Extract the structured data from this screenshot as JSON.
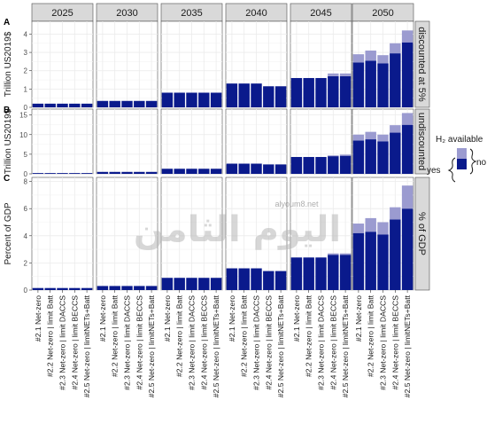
{
  "chart_data": {
    "type": "bar",
    "stacked": true,
    "facet_columns": [
      "2025",
      "2030",
      "2035",
      "2040",
      "2045",
      "2050"
    ],
    "categories": [
      "#2.1 Net-zero",
      "#2.2 Net-zero | limit Batt",
      "#2.3 Net-zero | limit DACCS",
      "#2.4 Net-zero | limit BECCS",
      "#2.5 Net-zero | limitNETs+Batt"
    ],
    "legend": {
      "title": "H₂ available",
      "entries": [
        {
          "label": "no",
          "color": "#9b9bd0"
        },
        {
          "label": "yes",
          "color": "#0a1a8c"
        }
      ]
    },
    "colors": {
      "base": "#0a1a8c",
      "extra": "#9b9bd0",
      "strip": "#d9d9d9",
      "grid": "#ebebeb"
    },
    "panels": [
      {
        "tag": "A",
        "strip": "discounted at 5%",
        "ylabel": "Trillion US2019$",
        "ylim": [
          0,
          4.7
        ],
        "yticks": [
          0,
          1,
          2,
          3,
          4
        ],
        "base": [
          [
            0.2,
            0.2,
            0.2,
            0.2,
            0.2
          ],
          [
            0.35,
            0.35,
            0.35,
            0.35,
            0.35
          ],
          [
            0.8,
            0.8,
            0.8,
            0.8,
            0.8
          ],
          [
            1.3,
            1.3,
            1.3,
            1.15,
            1.15
          ],
          [
            1.6,
            1.6,
            1.6,
            1.7,
            1.7
          ],
          [
            2.45,
            2.55,
            2.4,
            2.95,
            3.55
          ]
        ],
        "extra": [
          [
            0,
            0,
            0,
            0,
            0
          ],
          [
            0,
            0,
            0,
            0,
            0
          ],
          [
            0,
            0,
            0,
            0,
            0
          ],
          [
            0,
            0,
            0,
            0,
            0
          ],
          [
            0,
            0,
            0,
            0.15,
            0.15
          ],
          [
            0.45,
            0.55,
            0.45,
            0.55,
            0.65
          ]
        ]
      },
      {
        "tag": "B",
        "strip": "undiscounted",
        "ylabel": "Trillion US2019$",
        "ylim": [
          0,
          16.5
        ],
        "yticks": [
          0,
          5,
          10,
          15
        ],
        "base": [
          [
            0.2,
            0.2,
            0.2,
            0.2,
            0.2
          ],
          [
            0.5,
            0.5,
            0.5,
            0.5,
            0.5
          ],
          [
            1.3,
            1.3,
            1.3,
            1.3,
            1.3
          ],
          [
            2.6,
            2.6,
            2.6,
            2.4,
            2.4
          ],
          [
            4.3,
            4.3,
            4.3,
            4.5,
            4.6
          ],
          [
            8.5,
            8.8,
            8.3,
            10.5,
            12.5
          ]
        ],
        "extra": [
          [
            0,
            0,
            0,
            0,
            0
          ],
          [
            0,
            0,
            0,
            0,
            0
          ],
          [
            0,
            0,
            0,
            0,
            0
          ],
          [
            0,
            0,
            0,
            0,
            0
          ],
          [
            0,
            0,
            0,
            0.2,
            0.3
          ],
          [
            1.5,
            1.9,
            1.7,
            1.9,
            3.0
          ]
        ]
      },
      {
        "tag": "C",
        "strip": "% of GDP",
        "ylabel": "Percent of GDP",
        "ylim": [
          0,
          8.3
        ],
        "yticks": [
          0,
          2,
          4,
          6,
          8
        ],
        "base": [
          [
            0.15,
            0.15,
            0.15,
            0.15,
            0.15
          ],
          [
            0.3,
            0.3,
            0.3,
            0.3,
            0.3
          ],
          [
            0.9,
            0.9,
            0.9,
            0.9,
            0.9
          ],
          [
            1.6,
            1.6,
            1.6,
            1.4,
            1.4
          ],
          [
            2.4,
            2.4,
            2.4,
            2.6,
            2.6
          ],
          [
            4.2,
            4.3,
            4.1,
            5.2,
            6.0
          ]
        ],
        "extra": [
          [
            0,
            0,
            0,
            0,
            0
          ],
          [
            0,
            0,
            0,
            0,
            0
          ],
          [
            0,
            0,
            0,
            0,
            0
          ],
          [
            0,
            0,
            0,
            0,
            0
          ],
          [
            0,
            0,
            0,
            0.1,
            0.1
          ],
          [
            0.7,
            1.0,
            0.9,
            0.9,
            1.7
          ]
        ]
      }
    ]
  },
  "legend_title": "H₂ available",
  "legend_no": "no",
  "legend_yes": "yes",
  "watermark": "اليوم الثامن",
  "watermark_sub": "alyoum8.net"
}
